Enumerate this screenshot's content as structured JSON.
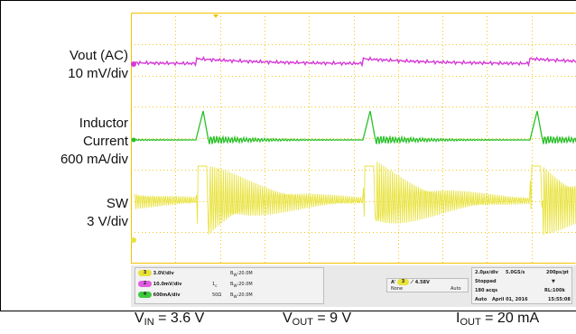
{
  "labels": {
    "vout": [
      "Vout (AC)",
      "10 mV/div"
    ],
    "inductor": [
      "Inductor",
      "Current",
      "600 mA/div"
    ],
    "sw": [
      "SW",
      "3 V/div"
    ]
  },
  "status": {
    "channels": [
      {
        "num": "3",
        "scale": "3.0V/div",
        "bw": "B",
        "bw_sub": "W",
        "bw_val": ":20.0M",
        "color": "#e8e23a"
      },
      {
        "num": "2",
        "scale": "10.0mV/div",
        "bw": "B",
        "bw_sub": "W",
        "bw_val": ":20.0M",
        "color": "#e05ce0",
        "extra": "1",
        "extra_sub": "c"
      },
      {
        "num": "4",
        "scale": "600mA/div",
        "bw": "B",
        "bw_sub": "W",
        "bw_val": ":20.0M",
        "color": "#3ec83e",
        "extra": "50Ω"
      }
    ],
    "trigger": {
      "letter": "A'",
      "num": "3",
      "level": "4.58V",
      "mode": "None",
      "auto": "Auto"
    },
    "timebase": {
      "rate": "2.0µs/div",
      "sample": "5.0GS/s",
      "res": "200ps/pt",
      "state": "Stopped",
      "marker": "▼",
      "acqs": "180 acqs",
      "rl": "RL:100k",
      "mode": "Auto",
      "date": "April 01, 2016",
      "time": "15:55:08"
    }
  },
  "caption": {
    "vin_sym": "V",
    "vin_sub": "IN",
    "vin_val": " = 3.6 V",
    "vout_sym": "V",
    "vout_sub": "OUT",
    "vout_val": " = 9 V",
    "iout_sym": "I",
    "iout_sub": "OUT",
    "iout_val": " = 20 mA"
  },
  "colors": {
    "grid": "#f2c200",
    "vout_trace": "#d63ad6",
    "inductor_trace": "#28c028",
    "sw_trace": "#e8e23a"
  }
}
